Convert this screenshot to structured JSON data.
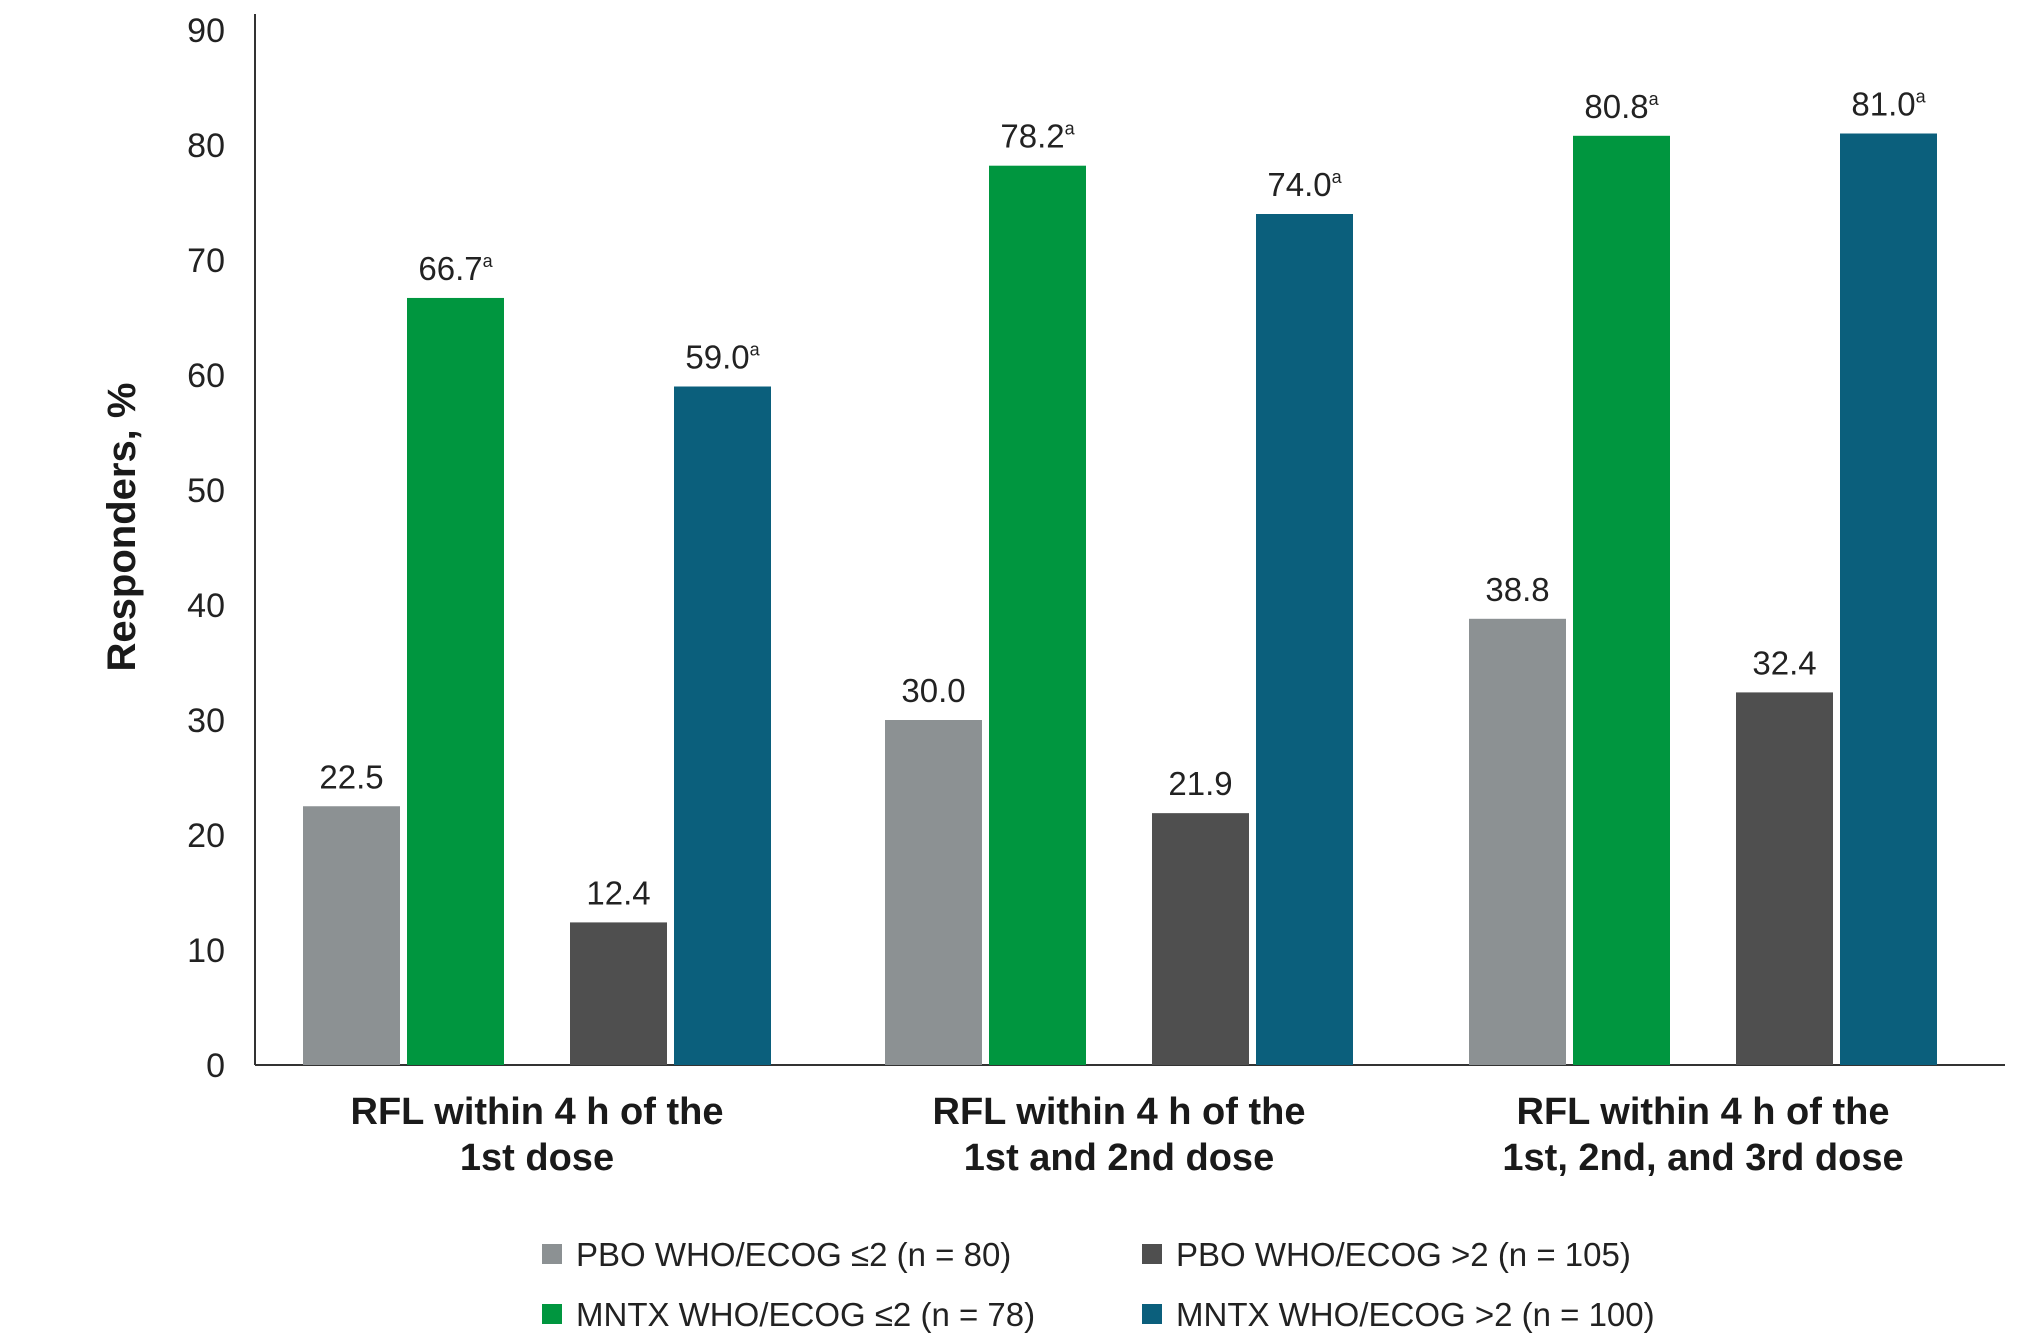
{
  "chart_data": {
    "type": "bar",
    "title": "",
    "xlabel": "",
    "ylabel": "Responders, %",
    "ylim": [
      0,
      90
    ],
    "yticks": [
      0,
      10,
      20,
      30,
      40,
      50,
      60,
      70,
      80,
      90
    ],
    "grid": false,
    "legend_position": "bottom",
    "categories": [
      [
        "RFL within 4 h of the",
        "1st dose"
      ],
      [
        "RFL within 4 h of the",
        "1st and 2nd dose"
      ],
      [
        "RFL within 4 h of the",
        "1st, 2nd, and 3rd dose"
      ]
    ],
    "series": [
      {
        "name": "PBO WHO/ECOG ≤2 (n = 80)",
        "color": "#8c9193",
        "values": [
          22.5,
          30.0,
          38.8
        ],
        "labels": [
          "22.5",
          "30.0",
          "38.8"
        ],
        "footnote": [
          "",
          "",
          ""
        ]
      },
      {
        "name": "MNTX WHO/ECOG ≤2 (n = 78)",
        "color": "#00963f",
        "values": [
          66.7,
          78.2,
          80.8
        ],
        "labels": [
          "66.7",
          "78.2",
          "80.8"
        ],
        "footnote": [
          "a",
          "a",
          "a"
        ]
      },
      {
        "name": "PBO WHO/ECOG >2 (n = 105)",
        "color": "#4f4f4f",
        "values": [
          12.4,
          21.9,
          32.4
        ],
        "labels": [
          "12.4",
          "21.9",
          "32.4"
        ],
        "footnote": [
          "",
          "",
          ""
        ]
      },
      {
        "name": "MNTX WHO/ECOG >2 (n = 100)",
        "color": "#0b5f7c",
        "values": [
          59.0,
          74.0,
          81.0
        ],
        "labels": [
          "59.0",
          "74.0",
          "81.0"
        ],
        "footnote": [
          "a",
          "a",
          "a"
        ]
      }
    ]
  }
}
